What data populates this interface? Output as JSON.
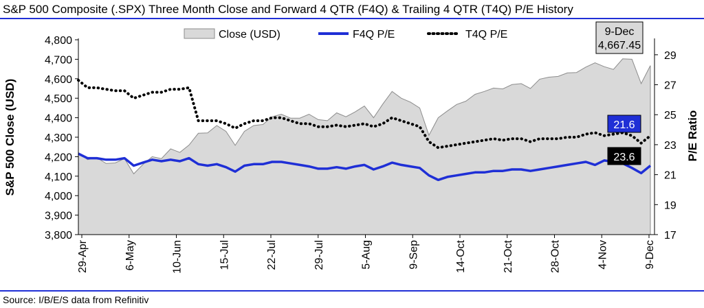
{
  "title": "S&P 500 Composite (.SPX) Three Month Close and Forward 4 QTR (F4Q) & Trailing 4 QTR (T4Q) P/E History",
  "source": "Source: I/B/E/S data from Refinitiv",
  "colors": {
    "rule": "#1f2fd6",
    "close_fill": "#d9d9d9",
    "close_edge": "#8c8c8c",
    "f4q": "#1f2fd6",
    "t4q": "#000000"
  },
  "callouts": {
    "date_box": {
      "line1": "9-Dec",
      "line2": "4,667.45"
    },
    "f4q_label": "21.6",
    "t4q_label": "23.6"
  },
  "chart_data": {
    "type": "area",
    "title": "S&P 500 Composite (.SPX) Three Month Close and Forward 4 QTR (F4Q) & Trailing 4 QTR (T4Q) P/E History",
    "x_tick_labels": [
      "29-Apr",
      "6-May",
      "10-Jun",
      "15-Jul",
      "22-Jul",
      "29-Jul",
      "5-Aug",
      "9-Sep",
      "14-Oct",
      "21-Oct",
      "28-Oct",
      "4-Nov",
      "9-Dec"
    ],
    "ylabel_left": "S&P 500 Close (USD)",
    "ylabel_right": "P/E Ratio",
    "ylim_left": [
      3800,
      4800
    ],
    "yticks_left": [
      "3,800",
      "3,900",
      "4,000",
      "4,100",
      "4,200",
      "4,300",
      "4,400",
      "4,500",
      "4,600",
      "4,700",
      "4,800"
    ],
    "ylim_right": [
      17,
      30
    ],
    "yticks_right": [
      "17",
      "19",
      "21",
      "23",
      "25",
      "27",
      "29"
    ],
    "legend": [
      "Close (USD)",
      "F4Q P/E",
      "T4Q P/E"
    ],
    "legend_position": "top-center",
    "grid": false,
    "series": [
      {
        "name": "Close (USD)",
        "kind": "area",
        "values": [
          4220,
          4185,
          4195,
          4165,
          4168,
          4190,
          4112,
          4160,
          4200,
          4190,
          4240,
          4222,
          4260,
          4320,
          4322,
          4360,
          4330,
          4258,
          4330,
          4360,
          4365,
          4405,
          4418,
          4398,
          4398,
          4418,
          4390,
          4385,
          4425,
          4405,
          4430,
          4460,
          4400,
          4470,
          4535,
          4500,
          4480,
          4450,
          4310,
          4400,
          4435,
          4468,
          4485,
          4520,
          4535,
          4552,
          4548,
          4570,
          4575,
          4550,
          4598,
          4608,
          4612,
          4630,
          4632,
          4660,
          4682,
          4662,
          4648,
          4702,
          4700,
          4575,
          4667.45
        ]
      },
      {
        "name": "F4Q P/E",
        "kind": "line",
        "values": [
          22.4,
          22.1,
          22.1,
          22.0,
          22.0,
          22.1,
          21.6,
          21.8,
          22.0,
          21.9,
          22.0,
          21.9,
          22.1,
          21.7,
          21.6,
          21.7,
          21.5,
          21.2,
          21.6,
          21.7,
          21.7,
          21.85,
          21.85,
          21.75,
          21.65,
          21.55,
          21.4,
          21.4,
          21.5,
          21.4,
          21.55,
          21.65,
          21.35,
          21.55,
          21.8,
          21.65,
          21.55,
          21.45,
          20.95,
          20.65,
          20.85,
          20.95,
          21.05,
          21.15,
          21.15,
          21.25,
          21.25,
          21.35,
          21.35,
          21.25,
          21.35,
          21.45,
          21.55,
          21.65,
          21.75,
          21.85,
          21.65,
          21.95,
          21.85,
          21.75,
          21.45,
          21.1,
          21.6
        ]
      },
      {
        "name": "T4Q P/E",
        "kind": "line",
        "values": [
          27.3,
          26.8,
          26.8,
          26.7,
          26.6,
          26.6,
          26.1,
          26.3,
          26.5,
          26.5,
          26.7,
          26.7,
          26.8,
          24.6,
          24.6,
          24.6,
          24.4,
          24.1,
          24.4,
          24.6,
          24.6,
          24.8,
          24.8,
          24.6,
          24.4,
          24.4,
          24.2,
          24.2,
          24.3,
          24.2,
          24.3,
          24.4,
          24.2,
          24.4,
          24.8,
          24.6,
          24.4,
          24.2,
          23.2,
          22.8,
          22.9,
          23.0,
          23.1,
          23.2,
          23.3,
          23.4,
          23.3,
          23.4,
          23.4,
          23.2,
          23.4,
          23.4,
          23.4,
          23.5,
          23.5,
          23.7,
          23.8,
          23.6,
          23.7,
          23.8,
          23.6,
          23.1,
          23.6
        ]
      }
    ]
  }
}
